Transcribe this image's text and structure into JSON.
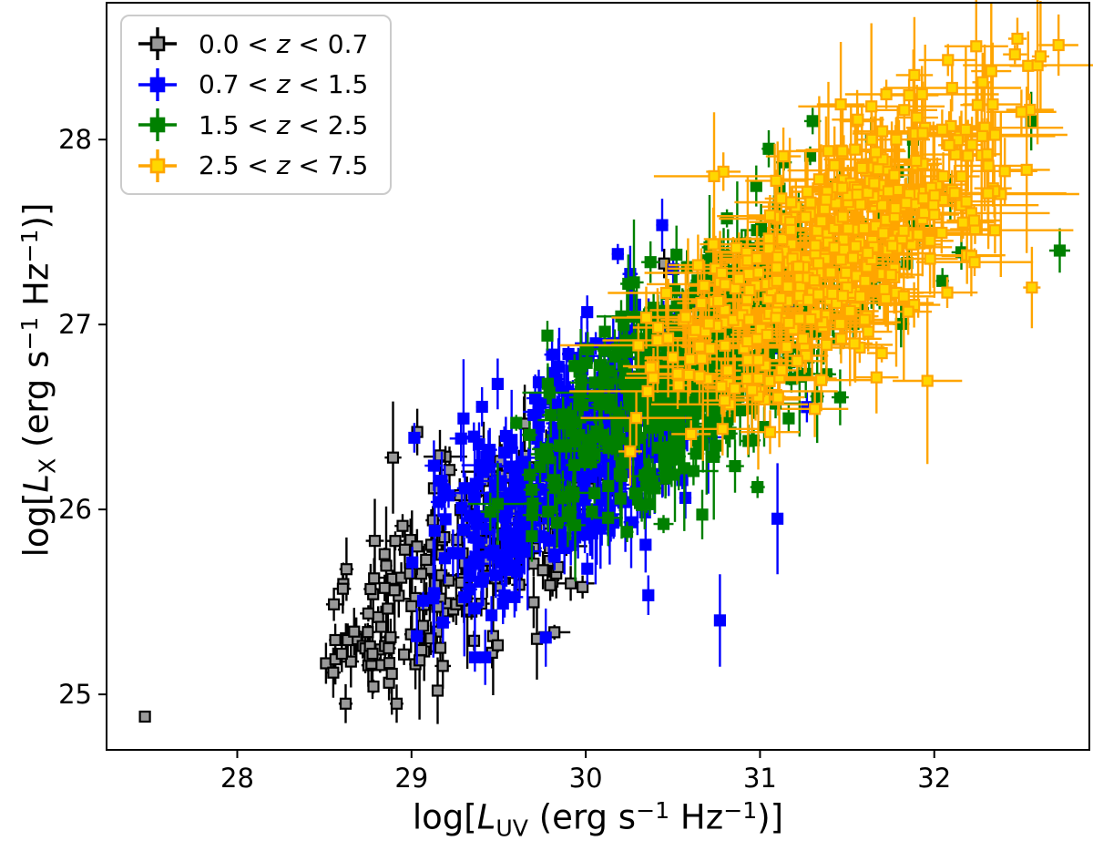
{
  "figure": {
    "background": "#ffffff",
    "axis_color": "#000000",
    "legend_border_color": "#cbcbcb"
  },
  "chart_data": {
    "type": "scatter",
    "title": "",
    "xlabel": {
      "text": "log[L_UV (erg s^-1 Hz^-1)]",
      "pre": "log[",
      "sym": "L",
      "sub": "UV",
      "mid1": " (erg s",
      "sup1": "−1",
      "mid2": " Hz",
      "sup2": "−1",
      "post": ")]"
    },
    "ylabel": {
      "text": "log[L_X (erg s^-1 Hz^-1)]",
      "pre": "log[",
      "sym": "L",
      "sub": "X",
      "mid1": " (erg s",
      "sup1": "−1",
      "mid2": " Hz",
      "sup2": "−1",
      "post": ")]"
    },
    "xlim": [
      27.25,
      32.89
    ],
    "ylim": [
      24.7,
      28.74
    ],
    "xticks": [
      28,
      29,
      30,
      31,
      32
    ],
    "yticks": [
      25,
      26,
      27,
      28
    ],
    "grid": false,
    "legend_position": "upper-left",
    "marker": "square-with-errorbars",
    "seed": 7,
    "series": [
      {
        "name": "z-0.0-0.7",
        "label": "0.0 < z < 0.7",
        "label_pre": "0.0 < ",
        "label_var": "z",
        "label_post": " < 0.7",
        "color": "#000000",
        "face": "#999999",
        "edge": "#000000",
        "n": 210,
        "x_mean": 29.35,
        "x_sigma": 0.45,
        "x_clip": [
          28.5,
          30.7
        ],
        "slope": 0.62,
        "intercept": 7.55,
        "y_sigma": 0.27,
        "y_clip": [
          24.95,
          27.4
        ],
        "err": {
          "ex": 0.025,
          "ey": 0.07,
          "big_p": 0.12,
          "big_mult": 3,
          "cap": 0.32
        },
        "fixed": [
          {
            "x": 27.47,
            "y": 24.88,
            "ex": 0.02,
            "ey": 0.02
          },
          {
            "x": 28.6,
            "y": 25.22,
            "ex": 0.03,
            "ey": 0.1
          },
          {
            "x": 29.15,
            "y": 25.02,
            "ex": 0.03,
            "ey": 0.18
          },
          {
            "x": 29.72,
            "y": 25.3,
            "ex": 0.03,
            "ey": 0.22
          },
          {
            "x": 30.45,
            "y": 27.33,
            "ex": 0.03,
            "ey": 0.08
          }
        ]
      },
      {
        "name": "z-0.7-1.5",
        "label": "0.7 < z < 1.5",
        "label_pre": "0.7 < ",
        "label_var": "z",
        "label_post": " < 1.5",
        "color": "#0000ff",
        "face": "#0000ff",
        "edge": "#0000ff",
        "n": 470,
        "x_mean": 29.95,
        "x_sigma": 0.42,
        "x_clip": [
          28.95,
          31.75
        ],
        "slope": 0.62,
        "intercept": 7.72,
        "y_sigma": 0.28,
        "y_clip": [
          25.2,
          27.85
        ],
        "err": {
          "ex": 0.025,
          "ey": 0.08,
          "big_p": 0.15,
          "big_mult": 3,
          "cap": 0.32
        },
        "fixed": [
          {
            "x": 31.63,
            "y": 27.78,
            "ex": 0.03,
            "ey": 0.08
          },
          {
            "x": 30.77,
            "y": 25.4,
            "ex": 0.03,
            "ey": 0.25
          },
          {
            "x": 31.1,
            "y": 25.95,
            "ex": 0.03,
            "ey": 0.3
          }
        ]
      },
      {
        "name": "z-1.5-2.5",
        "label": "1.5 < z < 2.5",
        "label_pre": "1.5 < ",
        "label_var": "z",
        "label_post": " < 2.5",
        "color": "#008000",
        "face": "#008000",
        "edge": "#008000",
        "n": 620,
        "x_mean": 30.75,
        "x_sigma": 0.5,
        "x_clip": [
          29.45,
          32.6
        ],
        "slope": 0.62,
        "intercept": 7.8,
        "y_sigma": 0.29,
        "y_clip": [
          25.7,
          28.1
        ],
        "err": {
          "ex": 0.03,
          "ey": 0.08,
          "big_p": 0.15,
          "big_mult": 3,
          "cap": 0.34
        },
        "fixed": [
          {
            "x": 31.05,
            "y": 27.95,
            "ex": 0.04,
            "ey": 0.1
          },
          {
            "x": 32.72,
            "y": 27.4,
            "ex": 0.06,
            "ey": 0.12
          },
          {
            "x": 29.78,
            "y": 26.94,
            "ex": 0.03,
            "ey": 0.08
          }
        ]
      },
      {
        "name": "z-2.5-7.5",
        "label": "2.5 < z < 7.5",
        "label_pre": "2.5 < ",
        "label_var": "z",
        "label_post": " < 7.5",
        "color": "#ffa500",
        "face": "#ffd700",
        "edge": "#ffa500",
        "n": 430,
        "x_mean": 31.4,
        "x_sigma": 0.52,
        "x_clip": [
          30.25,
          32.72
        ],
        "slope": 0.62,
        "intercept": 7.9,
        "y_sigma": 0.3,
        "y_clip": [
          26.25,
          28.55
        ],
        "err": {
          "ex": 0.1,
          "ey": 0.1,
          "big_p": 0.3,
          "big_mult": 2.6,
          "cap": 0.45
        },
        "fixed": [
          {
            "x": 32.61,
            "y": 28.45,
            "ex": 0.05,
            "ey": 0.3
          },
          {
            "x": 32.5,
            "y": 28.15,
            "ex": 0.2,
            "ey": 0.12
          },
          {
            "x": 31.29,
            "y": 27.66,
            "ex": 0.42,
            "ey": 0.08
          },
          {
            "x": 32.56,
            "y": 27.2,
            "ex": 0.05,
            "ey": 0.22
          }
        ]
      }
    ]
  }
}
